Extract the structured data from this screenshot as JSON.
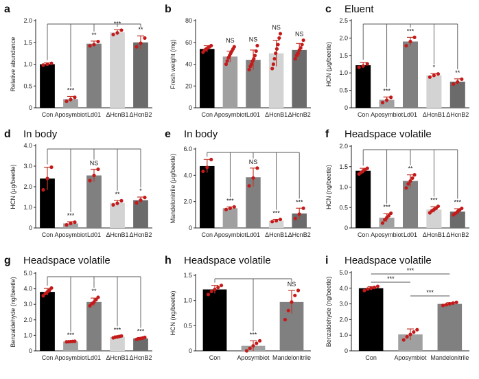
{
  "chart_data": [
    {
      "id": "a",
      "panel_label": "a",
      "title": "",
      "type": "bar",
      "ylabel": "Relative abundance",
      "ylim": [
        0,
        2.0
      ],
      "yticks": [
        "0",
        "0.5",
        "1.0",
        "1.5",
        "2.0"
      ],
      "ytick_values": [
        0,
        0.5,
        1.0,
        1.5,
        2.0
      ],
      "categories": [
        "Con",
        "Aposymbiot",
        "Ld01",
        "ΔHcnB1",
        "ΔHcnB2"
      ],
      "values": [
        1.0,
        0.2,
        1.47,
        1.73,
        1.5
      ],
      "errors": [
        0.03,
        0.06,
        0.06,
        0.06,
        0.15
      ],
      "points": [
        [
          0.98,
          1.0,
          1.02
        ],
        [
          0.15,
          0.19,
          0.24
        ],
        [
          1.42,
          1.45,
          1.52
        ],
        [
          1.68,
          1.72,
          1.78
        ],
        [
          1.4,
          1.48,
          1.6
        ]
      ],
      "significance": [
        "",
        "***",
        "**",
        "***",
        "**"
      ],
      "bracket": "top",
      "colors": [
        "#000000",
        "#a0a0a0",
        "#808080",
        "#d3d3d3",
        "#6b6b6b"
      ]
    },
    {
      "id": "b",
      "panel_label": "b",
      "title": "",
      "type": "bar",
      "ylabel": "Fresh weight (mg)",
      "ylim": [
        0,
        80
      ],
      "yticks": [
        "0",
        "20",
        "40",
        "60",
        "80"
      ],
      "ytick_values": [
        0,
        20,
        40,
        60,
        80
      ],
      "categories": [
        "Con",
        "Aposymbiot",
        "Ld01",
        "ΔHcnB1",
        "ΔHcnB2"
      ],
      "values": [
        54,
        47,
        44,
        50,
        53
      ],
      "errors": [
        3,
        5,
        9,
        12,
        6
      ],
      "points": [
        [
          51,
          53,
          54,
          55,
          56,
          57
        ],
        [
          40,
          43,
          46,
          48,
          50,
          52,
          54,
          56
        ],
        [
          35,
          38,
          40,
          43,
          45,
          48,
          52,
          57
        ],
        [
          36,
          40,
          45,
          50,
          54,
          58,
          64,
          68
        ],
        [
          45,
          48,
          50,
          53,
          55,
          58,
          62
        ]
      ],
      "significance": [
        "",
        "NS",
        "NS",
        "NS",
        "NS"
      ],
      "bracket": "none",
      "colors": [
        "#000000",
        "#a0a0a0",
        "#808080",
        "#d3d3d3",
        "#6b6b6b"
      ]
    },
    {
      "id": "c",
      "panel_label": "c",
      "title": "Eluent",
      "type": "bar",
      "ylabel": "HCN (μg/beetle)",
      "ylim": [
        0,
        2.5
      ],
      "yticks": [
        "0",
        "0.5",
        "1.0",
        "1.5",
        "2.0",
        "2.5"
      ],
      "ytick_values": [
        0,
        0.5,
        1.0,
        1.5,
        2.0,
        2.5
      ],
      "categories": [
        "Con",
        "Aposymbiot",
        "Ld01",
        "ΔHcnB1",
        "ΔHcnB2"
      ],
      "values": [
        1.22,
        0.23,
        1.9,
        0.93,
        0.75
      ],
      "errors": [
        0.08,
        0.08,
        0.12,
        0.05,
        0.08
      ],
      "points": [
        [
          1.16,
          1.2,
          1.26
        ],
        [
          0.15,
          0.22,
          0.3
        ],
        [
          1.78,
          1.9,
          2.02
        ],
        [
          0.88,
          0.93,
          0.97
        ],
        [
          0.68,
          0.74,
          0.82
        ]
      ],
      "significance": [
        "",
        "***",
        "***",
        "*",
        "**"
      ],
      "bracket": "top",
      "colors": [
        "#000000",
        "#a0a0a0",
        "#808080",
        "#d3d3d3",
        "#6b6b6b"
      ]
    },
    {
      "id": "d",
      "panel_label": "d",
      "title": "In body",
      "type": "bar",
      "ylabel": "HCN (μg/beetle)",
      "ylim": [
        0,
        4.0
      ],
      "yticks": [
        "0",
        "1.0",
        "2.0",
        "3.0",
        "4.0"
      ],
      "ytick_values": [
        0,
        1.0,
        2.0,
        3.0,
        4.0
      ],
      "categories": [
        "Con",
        "Aposymbiot",
        "Ld01",
        "ΔHcnB1",
        "ΔHcnB2"
      ],
      "values": [
        2.4,
        0.22,
        2.55,
        1.22,
        1.35
      ],
      "errors": [
        0.55,
        0.08,
        0.3,
        0.12,
        0.15
      ],
      "points": [
        [
          1.85,
          2.4,
          2.95
        ],
        [
          0.15,
          0.22,
          0.28
        ],
        [
          2.3,
          2.55,
          2.85
        ],
        [
          1.12,
          1.2,
          1.32
        ],
        [
          1.22,
          1.35,
          1.48
        ]
      ],
      "significance": [
        "",
        "***",
        "NS",
        "**",
        "*"
      ],
      "bracket": "top",
      "colors": [
        "#000000",
        "#a0a0a0",
        "#808080",
        "#d3d3d3",
        "#6b6b6b"
      ]
    },
    {
      "id": "e",
      "panel_label": "e",
      "title": "In body",
      "type": "bar",
      "ylabel": "Mandelonitrile (μg/beetle)",
      "ylim": [
        0,
        6.0
      ],
      "yticks": [
        "0",
        "2.0",
        "4.0",
        "6.0"
      ],
      "ytick_values": [
        0,
        2.0,
        4.0,
        6.0
      ],
      "categories": [
        "Con",
        "Aposymbiot",
        "Ld01",
        "ΔHcnB1",
        "ΔHcnB2"
      ],
      "values": [
        4.7,
        1.5,
        3.85,
        0.55,
        1.1
      ],
      "errors": [
        0.5,
        0.1,
        0.7,
        0.1,
        0.4
      ],
      "points": [
        [
          4.3,
          4.6,
          5.2
        ],
        [
          1.4,
          1.5,
          1.6
        ],
        [
          3.2,
          3.8,
          4.55
        ],
        [
          0.48,
          0.55,
          0.65
        ],
        [
          0.72,
          1.05,
          1.5
        ]
      ],
      "significance": [
        "",
        "***",
        "NS",
        "***",
        "***"
      ],
      "bracket": "top",
      "colors": [
        "#000000",
        "#a0a0a0",
        "#808080",
        "#d3d3d3",
        "#6b6b6b"
      ]
    },
    {
      "id": "f",
      "panel_label": "f",
      "title": "Headspace volatile",
      "type": "bar",
      "ylabel": "HCN (ng/beetle)",
      "ylim": [
        0,
        2.0
      ],
      "yticks": [
        "0",
        "0.5",
        "1.0",
        "1.5",
        "2.0"
      ],
      "ytick_values": [
        0,
        0.5,
        1.0,
        1.5,
        2.0
      ],
      "categories": [
        "Con",
        "Aposymbiot",
        "Ld01",
        "ΔHcnB1",
        "ΔHcnB2"
      ],
      "values": [
        1.4,
        0.25,
        1.15,
        0.45,
        0.4
      ],
      "errors": [
        0.06,
        0.1,
        0.15,
        0.07,
        0.07
      ],
      "points": [
        [
          1.32,
          1.36,
          1.4,
          1.43,
          1.46
        ],
        [
          0.12,
          0.2,
          0.25,
          0.3,
          0.36
        ],
        [
          0.98,
          1.08,
          1.15,
          1.22,
          1.3
        ],
        [
          0.37,
          0.42,
          0.45,
          0.48,
          0.53
        ],
        [
          0.32,
          0.36,
          0.4,
          0.44,
          0.48
        ]
      ],
      "significance": [
        "",
        "***",
        "**",
        "***",
        "***"
      ],
      "bracket": "top",
      "colors": [
        "#000000",
        "#a0a0a0",
        "#808080",
        "#d3d3d3",
        "#6b6b6b"
      ]
    },
    {
      "id": "g",
      "panel_label": "g",
      "title": "Headspace volatile",
      "type": "bar",
      "ylabel": "Benzaldehyde (ng/beetle)",
      "ylim": [
        0,
        5.0
      ],
      "yticks": [
        "0",
        "1.0",
        "2.0",
        "3.0",
        "4.0",
        "5.0"
      ],
      "ytick_values": [
        0,
        1.0,
        2.0,
        3.0,
        4.0,
        5.0
      ],
      "categories": [
        "Con",
        "Aposymbiot",
        "Ld01",
        "ΔHcnB1",
        "ΔHcnB2"
      ],
      "values": [
        3.8,
        0.6,
        3.15,
        0.9,
        0.8
      ],
      "errors": [
        0.22,
        0.02,
        0.25,
        0.06,
        0.06
      ],
      "points": [
        [
          3.55,
          3.7,
          3.8,
          3.9,
          4.05
        ],
        [
          0.58,
          0.59,
          0.6,
          0.61,
          0.62
        ],
        [
          2.9,
          3.05,
          3.15,
          3.3,
          3.45
        ],
        [
          0.84,
          0.88,
          0.9,
          0.93,
          0.96
        ],
        [
          0.74,
          0.78,
          0.8,
          0.83,
          0.87
        ]
      ],
      "significance": [
        "",
        "***",
        "**",
        "***",
        "***"
      ],
      "bracket": "top",
      "colors": [
        "#000000",
        "#a0a0a0",
        "#808080",
        "#d3d3d3",
        "#6b6b6b"
      ]
    },
    {
      "id": "h",
      "panel_label": "h",
      "title": "Headspace volatile",
      "type": "bar",
      "ylabel": "HCN (ng/beetle)",
      "ylim": [
        0,
        1.5
      ],
      "yticks": [
        "0",
        "0.5",
        "1.0",
        "1.5"
      ],
      "ytick_values": [
        0,
        0.5,
        1.0,
        1.5
      ],
      "categories": [
        "Con",
        "Aposymbiot",
        "Mandelonitrile"
      ],
      "values": [
        1.22,
        0.1,
        0.97
      ],
      "errors": [
        0.08,
        0.1,
        0.23
      ],
      "points": [
        [
          1.12,
          1.18,
          1.22,
          1.26,
          1.3
        ],
        [
          0.0,
          0.05,
          0.1,
          0.15,
          0.2
        ],
        [
          0.62,
          0.8,
          0.97,
          1.1,
          1.2
        ]
      ],
      "significance": [
        "",
        "***",
        "NS"
      ],
      "bracket": "top",
      "colors": [
        "#000000",
        "#a0a0a0",
        "#808080"
      ]
    },
    {
      "id": "i",
      "panel_label": "i",
      "title": "Headspace volatile",
      "type": "bar",
      "ylabel": "Benzaldehyde (ng/beetle)",
      "ylim": [
        0,
        5.0
      ],
      "yticks": [
        "0",
        "1.0",
        "2.0",
        "3.0",
        "4.0",
        "5.0"
      ],
      "ytick_values": [
        0,
        1.0,
        2.0,
        3.0,
        4.0,
        5.0
      ],
      "categories": [
        "Con",
        "Aposymbiot",
        "Mandelonitrile"
      ],
      "values": [
        4.0,
        1.05,
        3.0
      ],
      "errors": [
        0.1,
        0.35,
        0.08
      ],
      "points": [
        [
          3.85,
          3.95,
          4.0,
          4.05,
          4.12
        ],
        [
          0.7,
          0.9,
          1.05,
          1.2,
          1.35
        ],
        [
          2.9,
          2.95,
          3.0,
          3.05,
          3.1
        ]
      ],
      "significance": [
        "",
        "",
        ""
      ],
      "bracket": "pairwise",
      "pairwise": [
        {
          "from": 0,
          "to": 2,
          "label": "***"
        },
        {
          "from": 0,
          "to": 1,
          "label": "***"
        },
        {
          "from": 1,
          "to": 2,
          "label": "***"
        }
      ],
      "colors": [
        "#000000",
        "#a0a0a0",
        "#808080"
      ]
    }
  ]
}
